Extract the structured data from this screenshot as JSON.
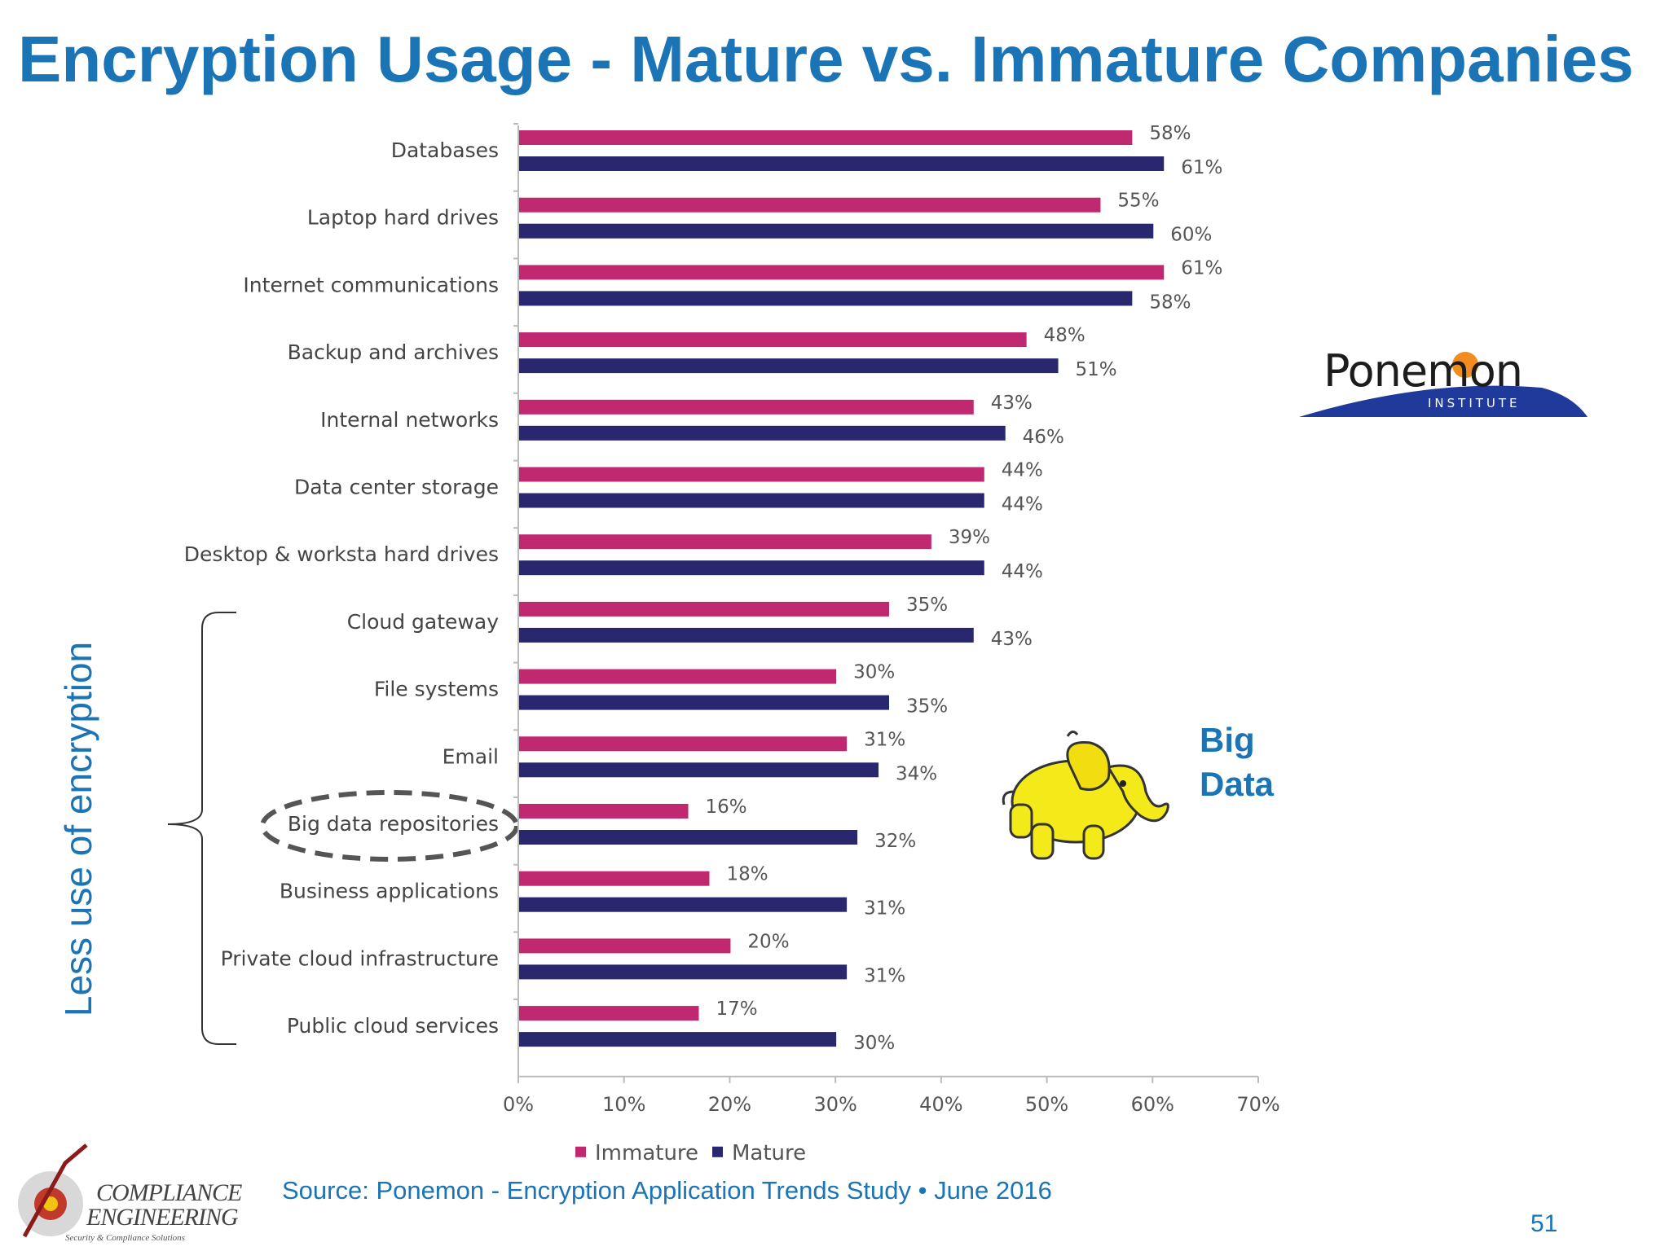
{
  "title": "Encryption Usage - Mature vs. Immature Companies",
  "side_label": "Less use of encryption",
  "annotation": "Big Data",
  "source": "Source: Ponemon - Encryption Application Trends Study • June 2016",
  "page_number": "51",
  "ponemon_logo": {
    "word": "Ponemon",
    "subtitle": "INSTITUTE"
  },
  "ce_logo": {
    "line1": "COMPLIANCE",
    "line2": "ENGINEERING",
    "line3": "Security & Compliance Solutions"
  },
  "colors": {
    "immature": "#c0286f",
    "mature": "#29286f",
    "accent": "#1a74b5"
  },
  "icons": [
    "hadoop-elephant-icon",
    "dashed-ellipse-highlight",
    "curly-brace"
  ],
  "chart_data": {
    "type": "bar",
    "orientation": "horizontal",
    "categories": [
      "Databases",
      "Laptop hard drives",
      "Internet communications",
      "Backup and archives",
      "Internal networks",
      "Data center storage",
      "Desktop & worksta hard drives",
      "Cloud gateway",
      "File systems",
      "Email",
      "Big data repositories",
      "Business applications",
      "Private cloud infrastructure",
      "Public cloud services"
    ],
    "series": [
      {
        "name": "Immature",
        "values": [
          58,
          55,
          61,
          48,
          43,
          44,
          39,
          35,
          30,
          31,
          16,
          18,
          20,
          17
        ]
      },
      {
        "name": "Mature",
        "values": [
          61,
          60,
          58,
          51,
          46,
          44,
          44,
          43,
          35,
          34,
          32,
          31,
          31,
          30
        ]
      }
    ],
    "xlim": [
      0,
      70
    ],
    "ticks": [
      "0%",
      "10%",
      "20%",
      "30%",
      "40%",
      "50%",
      "60%",
      "70%"
    ],
    "value_suffix": "%",
    "legend": "bottom",
    "grid": false,
    "highlighted_category": "Big data repositories"
  }
}
